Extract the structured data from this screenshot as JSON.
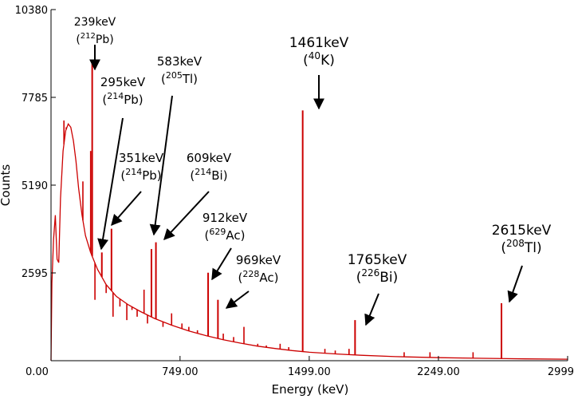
{
  "chart_data": {
    "type": "line",
    "title": "",
    "xlabel": "Energy (keV)",
    "ylabel": "Counts",
    "xlim": [
      0,
      2999
    ],
    "ylim": [
      0,
      10380
    ],
    "x_ticks": [
      0,
      749,
      1499,
      2249,
      2999
    ],
    "x_tick_labels": [
      "0.00",
      "749.00",
      "1499.00",
      "2249.00",
      "2999"
    ],
    "y_ticks": [
      2595,
      5190,
      7785,
      10380
    ],
    "y_tick_labels": [
      "2595",
      "5190",
      "7785",
      "10380"
    ],
    "grid": false,
    "series_color": "#cc0000",
    "continuum": [
      [
        0,
        0
      ],
      [
        5,
        2300
      ],
      [
        15,
        3600
      ],
      [
        25,
        4300
      ],
      [
        35,
        3000
      ],
      [
        45,
        2900
      ],
      [
        55,
        4800
      ],
      [
        70,
        6200
      ],
      [
        85,
        6800
      ],
      [
        100,
        7000
      ],
      [
        115,
        6900
      ],
      [
        130,
        6500
      ],
      [
        145,
        5900
      ],
      [
        160,
        5100
      ],
      [
        180,
        4300
      ],
      [
        200,
        3700
      ],
      [
        230,
        3200
      ],
      [
        270,
        2700
      ],
      [
        320,
        2250
      ],
      [
        380,
        1900
      ],
      [
        450,
        1650
      ],
      [
        520,
        1450
      ],
      [
        600,
        1250
      ],
      [
        700,
        1050
      ],
      [
        800,
        880
      ],
      [
        900,
        740
      ],
      [
        1000,
        620
      ],
      [
        1100,
        520
      ],
      [
        1200,
        430
      ],
      [
        1300,
        360
      ],
      [
        1400,
        300
      ],
      [
        1500,
        250
      ],
      [
        1650,
        200
      ],
      [
        1800,
        160
      ],
      [
        2000,
        120
      ],
      [
        2250,
        90
      ],
      [
        2500,
        70
      ],
      [
        2750,
        55
      ],
      [
        2999,
        45
      ]
    ],
    "minor_peaks": [
      [
        75,
        7100
      ],
      [
        88,
        6900
      ],
      [
        185,
        5300
      ],
      [
        230,
        6200
      ],
      [
        255,
        1800
      ],
      [
        320,
        2000
      ],
      [
        360,
        1300
      ],
      [
        400,
        1600
      ],
      [
        440,
        1200
      ],
      [
        470,
        1500
      ],
      [
        500,
        1300
      ],
      [
        540,
        2100
      ],
      [
        560,
        1100
      ],
      [
        650,
        1000
      ],
      [
        700,
        1400
      ],
      [
        760,
        1100
      ],
      [
        800,
        1000
      ],
      [
        850,
        900
      ],
      [
        1000,
        800
      ],
      [
        1060,
        700
      ],
      [
        1120,
        1000
      ],
      [
        1200,
        500
      ],
      [
        1250,
        450
      ],
      [
        1330,
        500
      ],
      [
        1380,
        400
      ],
      [
        1590,
        350
      ],
      [
        1650,
        300
      ],
      [
        1730,
        350
      ],
      [
        2050,
        250
      ],
      [
        2200,
        250
      ],
      [
        2450,
        250
      ]
    ],
    "labeled_peaks": [
      {
        "energy_label": "239keV",
        "iso_mass": "212",
        "iso_elem": "Pb",
        "x": 239,
        "y": 8800
      },
      {
        "energy_label": "295keV",
        "iso_mass": "214",
        "iso_elem": "Pb",
        "x": 295,
        "y": 3200
      },
      {
        "energy_label": "351keV",
        "iso_mass": "214",
        "iso_elem": "Pb",
        "x": 351,
        "y": 3900
      },
      {
        "energy_label": "583keV",
        "iso_mass": "205",
        "iso_elem": "Tl",
        "x": 583,
        "y": 3300
      },
      {
        "energy_label": "609keV",
        "iso_mass": "214",
        "iso_elem": "Bi",
        "x": 609,
        "y": 3500
      },
      {
        "energy_label": "912keV",
        "iso_mass": "629",
        "iso_elem": "Ac",
        "x": 912,
        "y": 2600
      },
      {
        "energy_label": "969keV",
        "iso_mass": "228",
        "iso_elem": "Ac",
        "x": 969,
        "y": 1800
      },
      {
        "energy_label": "1461keV",
        "iso_mass": "40",
        "iso_elem": "K",
        "x": 1461,
        "y": 7400
      },
      {
        "energy_label": "1765keV",
        "iso_mass": "226",
        "iso_elem": "Bi",
        "x": 1765,
        "y": 1200
      },
      {
        "energy_label": "2615keV",
        "iso_mass": "208",
        "iso_elem": "Tl",
        "x": 2615,
        "y": 1700
      }
    ]
  }
}
